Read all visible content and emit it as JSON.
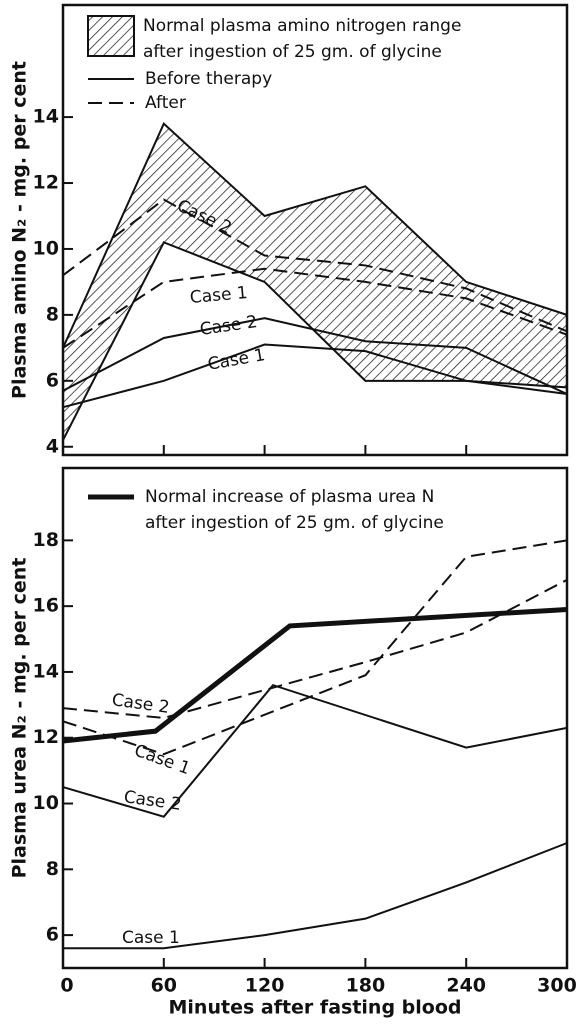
{
  "chart_data": [
    {
      "type": "line",
      "ylabel": "Plasma amino N₂ - mg. per cent",
      "legend": [
        "Normal plasma amino nitrogen range",
        "after ingestion of 25 gm. of glycine",
        "Before therapy",
        "After"
      ],
      "x": [
        0,
        60,
        120,
        180,
        240,
        300
      ],
      "xlim": [
        0,
        300
      ],
      "xticks": [
        0,
        60,
        120,
        180,
        240,
        300
      ],
      "ylim": [
        3.75,
        17.4
      ],
      "yticks": [
        4,
        6,
        8,
        10,
        12,
        14
      ],
      "band": {
        "upper": [
          7.0,
          13.8,
          11.0,
          11.9,
          9.0,
          8.0
        ],
        "lower": [
          4.2,
          10.2,
          9.0,
          6.0,
          6.0,
          5.8
        ]
      },
      "series": [
        {
          "name": "Case 2",
          "style": "dashed",
          "values": [
            9.2,
            11.5,
            9.8,
            9.5,
            8.8,
            7.5
          ]
        },
        {
          "name": "Case 1",
          "style": "dashed",
          "values": [
            7.0,
            9.0,
            9.4,
            9.0,
            8.5,
            7.4
          ]
        },
        {
          "name": "Case 2",
          "style": "solid",
          "values": [
            5.7,
            7.3,
            7.9,
            7.2,
            7.0,
            5.6
          ]
        },
        {
          "name": "Case 1",
          "style": "solid",
          "values": [
            5.2,
            6.0,
            7.1,
            6.9,
            6.0,
            5.6
          ]
        }
      ]
    },
    {
      "type": "line",
      "ylabel": "Plasma urea N₂ - mg. per cent",
      "xlabel": "Minutes after fasting blood",
      "legend": [
        "Normal increase of plasma urea N",
        "after ingestion of 25 gm. of glycine"
      ],
      "xlim": [
        0,
        300
      ],
      "xticks": [
        0,
        60,
        120,
        180,
        240,
        300
      ],
      "ylim": [
        5,
        20.2
      ],
      "yticks": [
        6,
        8,
        10,
        12,
        14,
        16,
        18
      ],
      "series": [
        {
          "style": "thick",
          "x": [
            0,
            55,
            135,
            300
          ],
          "values": [
            11.9,
            12.2,
            15.4,
            15.9
          ]
        },
        {
          "name": "Case 2",
          "style": "dashed",
          "x": [
            0,
            60,
            180,
            240,
            300
          ],
          "values": [
            12.9,
            12.6,
            14.3,
            15.2,
            16.8
          ]
        },
        {
          "name": "Case 1",
          "style": "dashed",
          "x": [
            0,
            60,
            180,
            240,
            300
          ],
          "values": [
            12.5,
            11.5,
            13.9,
            17.5,
            18.0
          ]
        },
        {
          "name": "Case 2",
          "style": "solid",
          "x": [
            0,
            60,
            125,
            240,
            300
          ],
          "values": [
            10.5,
            9.6,
            13.6,
            11.7,
            12.3
          ]
        },
        {
          "name": "Case 1",
          "style": "solid",
          "x": [
            0,
            60,
            120,
            180,
            240,
            300
          ],
          "values": [
            5.6,
            5.6,
            6.0,
            6.5,
            7.6,
            8.8
          ]
        }
      ]
    }
  ]
}
